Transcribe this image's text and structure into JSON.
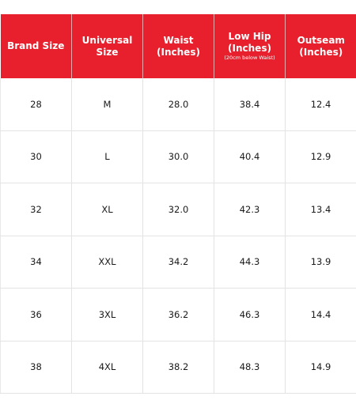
{
  "header": {
    "brand_size": "Brand Size",
    "universal_size": "Universal Size",
    "waist": "Waist",
    "waist_unit": "(Inches)",
    "low_hip": "Low Hip",
    "low_hip_unit": "(Inches)",
    "low_hip_note": "(20cm below Waist)",
    "outseam": "Outseam",
    "outseam_unit": "(Inches)"
  },
  "rows": [
    {
      "brand": "28",
      "universal": "M",
      "waist": "28.0",
      "low_hip": "38.4",
      "outseam": "12.4"
    },
    {
      "brand": "30",
      "universal": "L",
      "waist": "30.0",
      "low_hip": "40.4",
      "outseam": "12.9"
    },
    {
      "brand": "32",
      "universal": "XL",
      "waist": "32.0",
      "low_hip": "42.3",
      "outseam": "13.4"
    },
    {
      "brand": "34",
      "universal": "XXL",
      "waist": "34.2",
      "low_hip": "44.3",
      "outseam": "13.9"
    },
    {
      "brand": "36",
      "universal": "3XL",
      "waist": "36.2",
      "low_hip": "46.3",
      "outseam": "14.4"
    },
    {
      "brand": "38",
      "universal": "4XL",
      "waist": "38.2",
      "low_hip": "48.3",
      "outseam": "14.9"
    }
  ],
  "colors": {
    "header_bg": "#e8202d",
    "header_text": "#ffffff"
  }
}
